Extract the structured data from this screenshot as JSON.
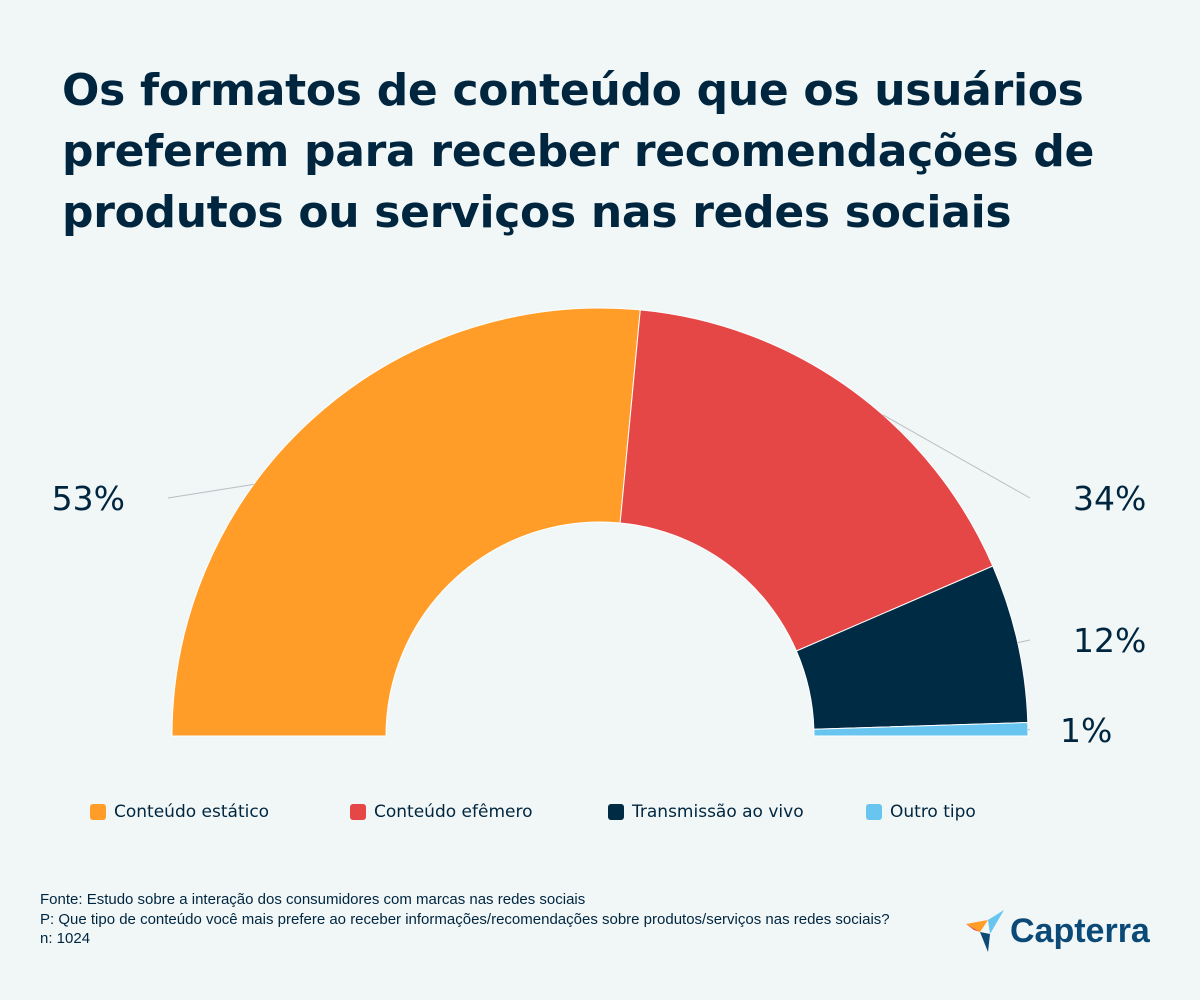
{
  "chart_data": {
    "type": "pie",
    "variant": "semi-donut",
    "title": "Os formatos de conteúdo que os usuários preferem para receber recomendações de produtos ou serviços nas redes sociais",
    "categories": [
      "Conteúdo estático",
      "Conteúdo efêmero",
      "Transmissão ao vivo",
      "Outro tipo"
    ],
    "values": [
      53,
      34,
      12,
      1
    ],
    "data_labels": [
      "53%",
      "34%",
      "12%",
      "1%"
    ],
    "colors": [
      "#ff9d28",
      "#e54747",
      "#002b45",
      "#67c5ef"
    ],
    "legend_position": "bottom"
  },
  "footer": {
    "source": "Fonte: Estudo sobre a interação dos consumidores com marcas nas redes sociais",
    "question": "P: Que tipo de conteúdo você mais prefere ao receber informações/recomendações sobre produtos/serviços nas redes sociais?",
    "n": "n: 1024"
  },
  "logo": {
    "text": "Capterra"
  }
}
